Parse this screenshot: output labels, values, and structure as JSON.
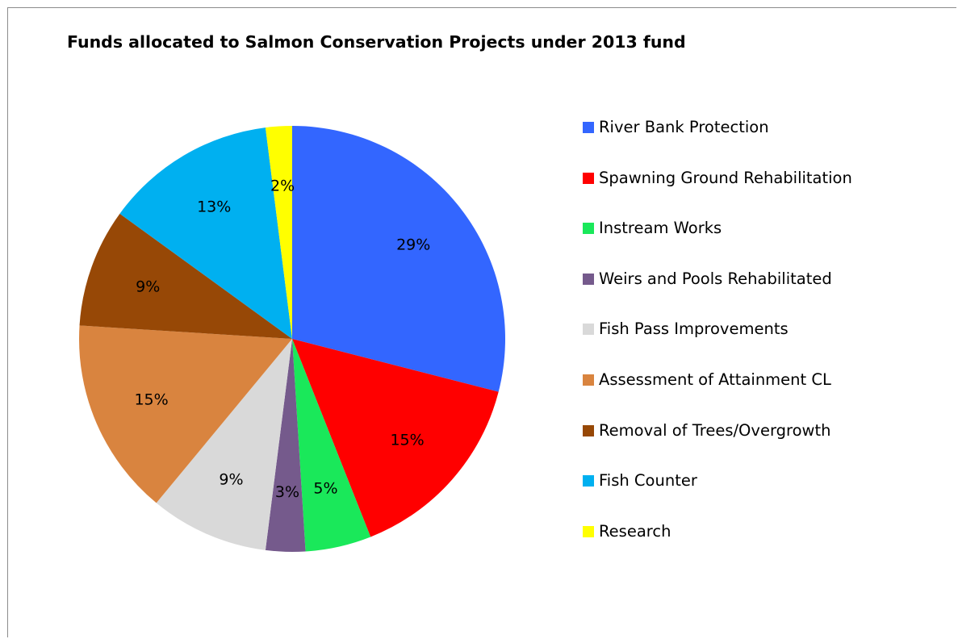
{
  "chart_data": {
    "type": "pie",
    "title": "Funds allocated to Salmon Conservation Projects under 2013 fund",
    "slices": [
      {
        "name": "River Bank Protection",
        "value": 29,
        "label": "29%",
        "color": "#3366FF"
      },
      {
        "name": "Spawning Ground Rehabilitation",
        "value": 15,
        "label": "15%",
        "color": "#FF0000"
      },
      {
        "name": "Instream Works",
        "value": 5,
        "label": "5%",
        "color": "#1AE85A"
      },
      {
        "name": "Weirs and Pools Rehabilitated",
        "value": 3,
        "label": "3%",
        "color": "#755A8C"
      },
      {
        "name": "Fish Pass Improvements",
        "value": 9,
        "label": "9%",
        "color": "#D9D9D9"
      },
      {
        "name": "Assessment of Attainment CL",
        "value": 15,
        "label": "15%",
        "color": "#D9843F"
      },
      {
        "name": "Removal of Trees/Overgrowth",
        "value": 9,
        "label": "9%",
        "color": "#974806"
      },
      {
        "name": "Fish Counter",
        "value": 13,
        "label": "13%",
        "color": "#00B0F0"
      },
      {
        "name": "Research",
        "value": 2,
        "label": "2%",
        "color": "#FFFF00"
      }
    ],
    "start_angle_deg": 0,
    "direction": "clockwise",
    "legend_position": "right"
  }
}
